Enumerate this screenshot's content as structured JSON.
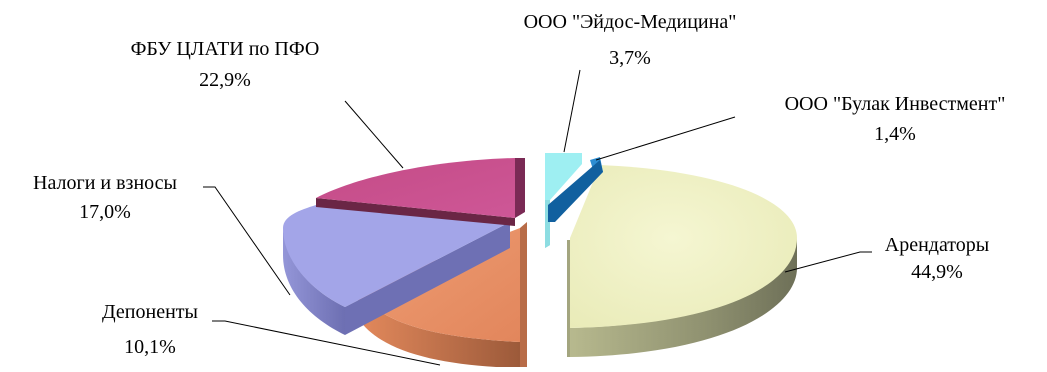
{
  "chart_data": {
    "type": "pie",
    "style": "3d-exploded",
    "legend": "none",
    "slices": [
      {
        "name": "Арендаторы",
        "value_label": "44,9%",
        "value": 44.9,
        "color": "#EEF0C2"
      },
      {
        "name": "Депоненты",
        "value_label": "10,1%",
        "value": 10.1,
        "color": "#E9946A"
      },
      {
        "name": "Налоги и взносы",
        "value_label": "17,0%",
        "value": 17.0,
        "color": "#A3A5E8"
      },
      {
        "name": "ФБУ ЦЛАТИ по ПФО",
        "value_label": "22,9%",
        "value": 22.9,
        "color": "#C84E8E"
      },
      {
        "name": "ООО \"Эйдос-Медицина\"",
        "value_label": "3,7%",
        "value": 3.7,
        "color": "#9EEFF2"
      },
      {
        "name": "ООО \"Булак Инвестмент\"",
        "value_label": "1,4%",
        "value": 1.4,
        "color": "#1F7FC6"
      }
    ]
  }
}
